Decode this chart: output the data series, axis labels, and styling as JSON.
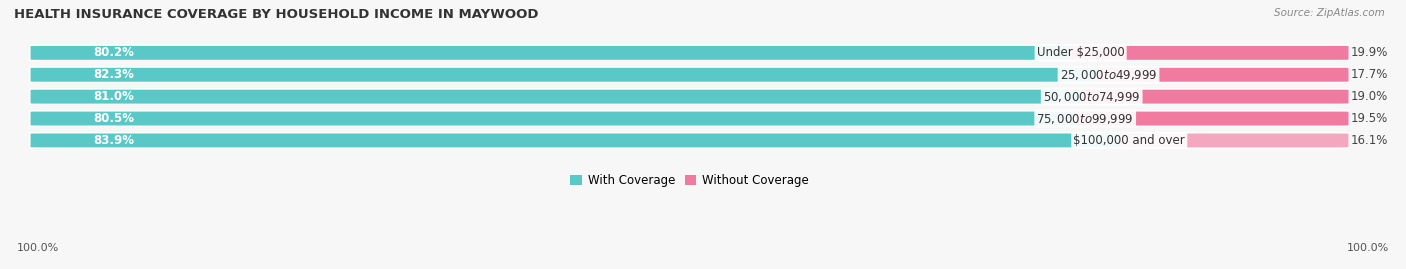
{
  "title": "HEALTH INSURANCE COVERAGE BY HOUSEHOLD INCOME IN MAYWOOD",
  "source": "Source: ZipAtlas.com",
  "categories": [
    "Under $25,000",
    "$25,000 to $49,999",
    "$50,000 to $74,999",
    "$75,000 to $99,999",
    "$100,000 and over"
  ],
  "with_coverage": [
    80.2,
    82.3,
    81.0,
    80.5,
    83.9
  ],
  "without_coverage": [
    19.9,
    17.7,
    19.0,
    19.5,
    16.1
  ],
  "color_with": "#5bc8c8",
  "color_without": "#f07aa0",
  "color_without_last": "#f4a8c0",
  "bg_row_color": "#ebebeb",
  "title_fontsize": 9.5,
  "label_fontsize": 8.5,
  "legend_fontsize": 8.5,
  "bar_height": 0.62
}
